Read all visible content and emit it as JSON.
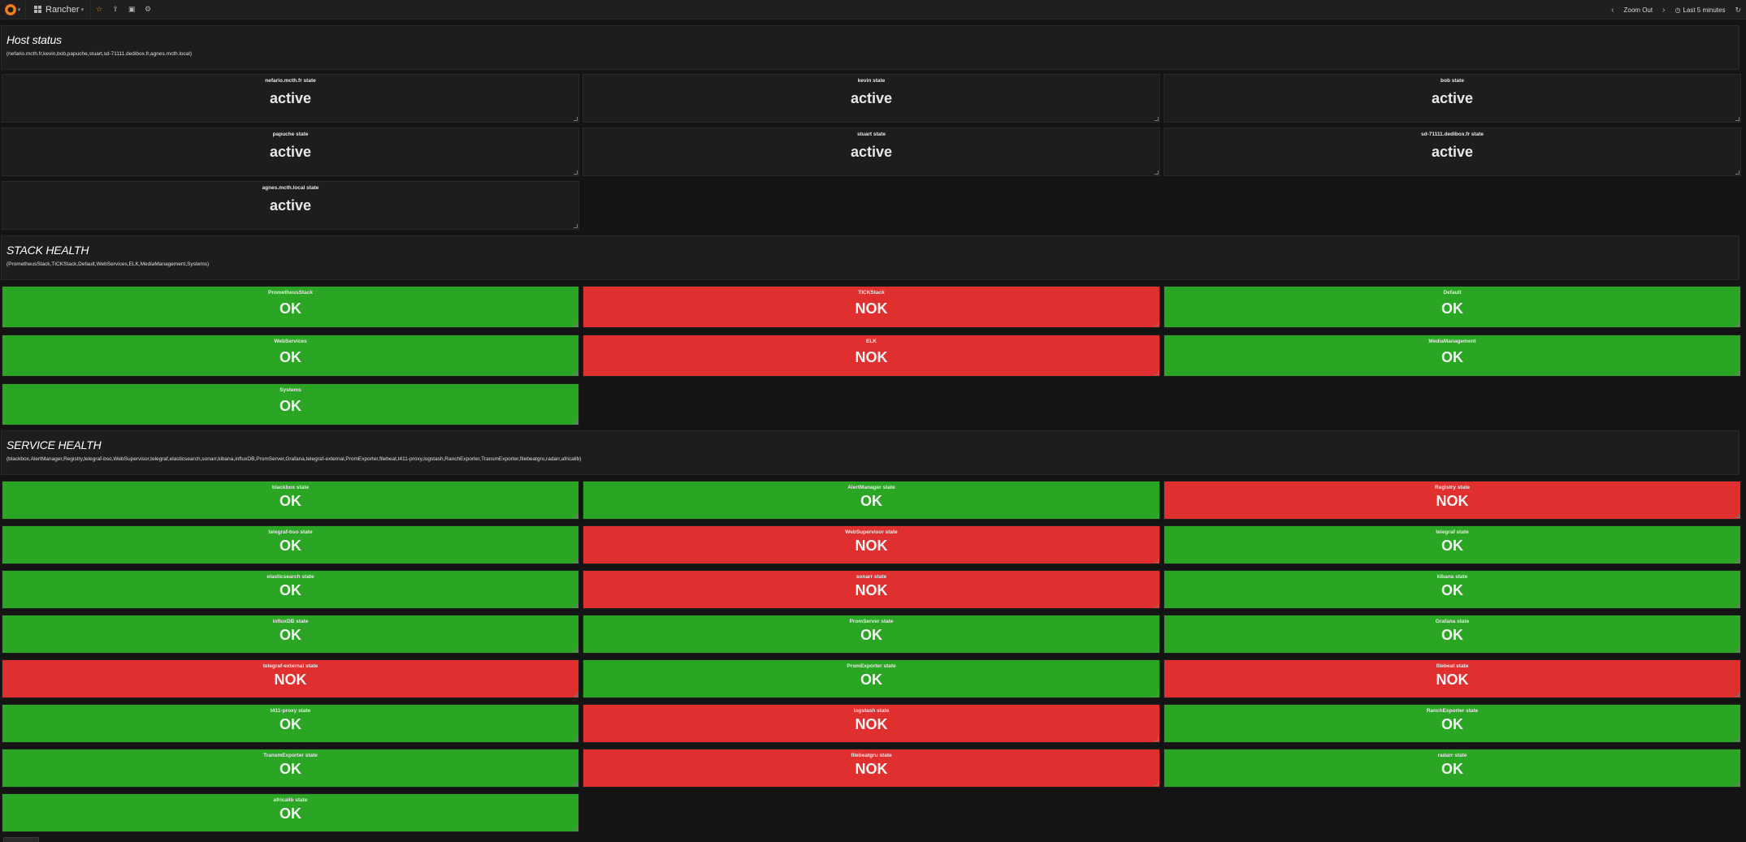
{
  "navbar": {
    "dashboard_title": "Rancher",
    "zoom_out": "Zoom Out",
    "time_range": "Last 5 minutes"
  },
  "rows": [
    {
      "title": "Host status",
      "subtitle": "(nefario.mcth.fr,kevin,bob,papuche,stuart,sd-71111.dedibox.fr,agnes.mcth.local)",
      "kind": "host",
      "panels": [
        {
          "title": "nefario.mcth.fr state",
          "value": "active"
        },
        {
          "title": "kevin state",
          "value": "active"
        },
        {
          "title": "bob state",
          "value": "active"
        },
        {
          "title": "papuche state",
          "value": "active"
        },
        {
          "title": "stuart state",
          "value": "active"
        },
        {
          "title": "sd-71111.dedibox.fr state",
          "value": "active"
        },
        {
          "title": "agnes.mcth.local state",
          "value": "active"
        }
      ]
    },
    {
      "title": "STACK HEALTH",
      "subtitle": "(PrometheusStack,TICKStack,Default,WebServices,ELK,MediaManagement,Systems)",
      "kind": "stack",
      "panels": [
        {
          "title": "PrometheusStack",
          "value": "OK"
        },
        {
          "title": "TICKStack",
          "value": "NOK"
        },
        {
          "title": "Default",
          "value": "OK"
        },
        {
          "title": "WebServices",
          "value": "OK"
        },
        {
          "title": "ELK",
          "value": "NOK"
        },
        {
          "title": "MediaManagement",
          "value": "OK"
        },
        {
          "title": "Systems",
          "value": "OK"
        }
      ]
    },
    {
      "title": "SERVICE HEALTH",
      "subtitle": "(blackbox,AlertManager,Registry,telegraf-bso,WebSupervisor,telegraf,elasticsearch,sonarr,kibana,influxDB,PromServer,Grafana,telegraf-external,PromExporter,filebeat,t411-proxy,logstash,RanchExporter,TransmExporter,filebeatgru,radarr,africalib)",
      "kind": "svc",
      "panels": [
        {
          "title": "blackbox state",
          "value": "OK"
        },
        {
          "title": "AlertManager state",
          "value": "OK"
        },
        {
          "title": "Registry state",
          "value": "NOK"
        },
        {
          "title": "telegraf-bso state",
          "value": "OK"
        },
        {
          "title": "WebSupervisor state",
          "value": "NOK"
        },
        {
          "title": "telegraf state",
          "value": "OK"
        },
        {
          "title": "elasticsearch state",
          "value": "OK"
        },
        {
          "title": "sonarr state",
          "value": "NOK"
        },
        {
          "title": "kibana state",
          "value": "OK"
        },
        {
          "title": "influxDB state",
          "value": "OK"
        },
        {
          "title": "PromServer state",
          "value": "OK"
        },
        {
          "title": "Grafana state",
          "value": "OK"
        },
        {
          "title": "telegraf-external state",
          "value": "NOK"
        },
        {
          "title": "PromExporter state",
          "value": "OK"
        },
        {
          "title": "filebeat state",
          "value": "NOK"
        },
        {
          "title": "t411-proxy state",
          "value": "OK"
        },
        {
          "title": "logstash state",
          "value": "NOK"
        },
        {
          "title": "RanchExporter state",
          "value": "OK"
        },
        {
          "title": "TransmExporter state",
          "value": "OK"
        },
        {
          "title": "filebeatgru state",
          "value": "NOK"
        },
        {
          "title": "radarr state",
          "value": "OK"
        },
        {
          "title": "africalib state",
          "value": "OK"
        }
      ]
    }
  ],
  "colors": {
    "ok": "#2aa524",
    "nok": "#e02f2f",
    "panel_bg": "#1d1d1d",
    "page_bg": "#141414"
  }
}
